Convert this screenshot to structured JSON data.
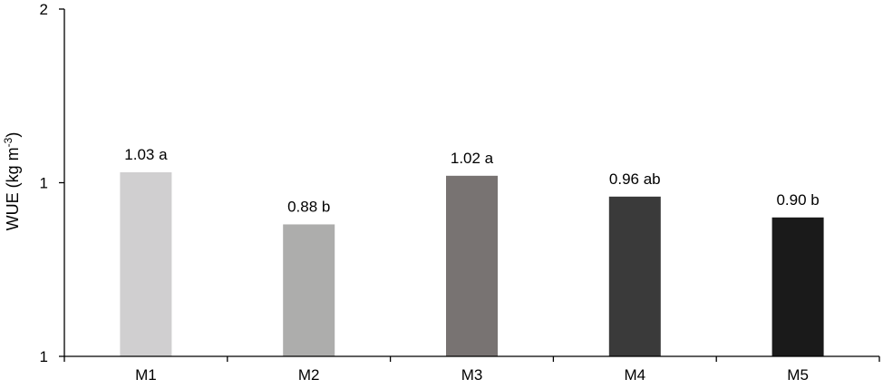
{
  "chart_data": {
    "type": "bar",
    "categories": [
      "M1",
      "M2",
      "M3",
      "M4",
      "M5"
    ],
    "values": [
      1.03,
      0.88,
      1.02,
      0.96,
      0.9
    ],
    "data_labels": [
      "1.03 a",
      "0.88 b",
      "1.02 a",
      "0.96 ab",
      "0.90 b"
    ],
    "bar_colors": [
      "#d0cfd0",
      "#adadac",
      "#787372",
      "#3a3a3a",
      "#1a1a1a"
    ],
    "xlabel": "",
    "ylabel": "WUE (kg m",
    "ylabel_superscript": "-3",
    "ylabel_suffix": ")",
    "ylim": [
      0.5,
      1.5
    ],
    "yticks": [
      {
        "value": 0.5,
        "label": "1"
      },
      {
        "value": 1.0,
        "label": "1"
      },
      {
        "value": 1.5,
        "label": "2"
      }
    ],
    "grid": false,
    "legend": "none"
  }
}
